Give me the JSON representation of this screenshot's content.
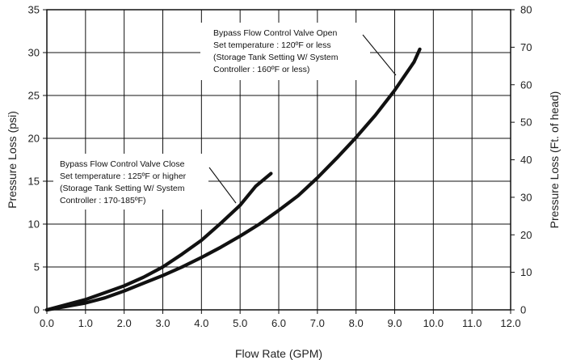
{
  "chart_data": {
    "type": "line",
    "xlabel": "Flow Rate (GPM)",
    "ylabel": "Pressure Loss (psi)",
    "y2label": "Pressure Loss (Ft. of head)",
    "xlim": [
      0,
      12
    ],
    "ylim": [
      0,
      35
    ],
    "y2lim": [
      0,
      80
    ],
    "grid": true,
    "legend": "none",
    "x_ticks": [
      "0.0",
      "1.0",
      "2.0",
      "3.0",
      "4.0",
      "5.0",
      "6.0",
      "7.0",
      "8.0",
      "9.0",
      "10.0",
      "11.0",
      "12.0"
    ],
    "y_ticks": [
      "0",
      "5",
      "10",
      "15",
      "20",
      "25",
      "30",
      "35"
    ],
    "y2_ticks": [
      "0",
      "10",
      "20",
      "30",
      "40",
      "50",
      "60",
      "70",
      "80"
    ],
    "series": [
      {
        "key": "open",
        "x": [
          0,
          0.5,
          1.0,
          1.5,
          2.0,
          2.5,
          3.0,
          3.5,
          4.0,
          4.5,
          5.0,
          5.5,
          6.0,
          6.5,
          7.0,
          7.5,
          8.0,
          8.5,
          9.0,
          9.5,
          9.65
        ],
        "y": [
          0,
          0.4,
          0.8,
          1.4,
          2.2,
          3.1,
          4.0,
          5.0,
          6.1,
          7.3,
          8.6,
          10.0,
          11.6,
          13.3,
          15.4,
          17.7,
          20.1,
          22.7,
          25.6,
          28.9,
          30.4
        ]
      },
      {
        "key": "close",
        "x": [
          0,
          0.5,
          1.0,
          1.5,
          2.0,
          2.5,
          3.0,
          3.5,
          4.0,
          4.5,
          5.0,
          5.4,
          5.8
        ],
        "y": [
          0,
          0.6,
          1.2,
          2.0,
          2.8,
          3.8,
          5.0,
          6.5,
          8.1,
          10.1,
          12.2,
          14.4,
          15.9
        ]
      }
    ],
    "annotations": [
      {
        "key": "open",
        "lines": [
          "Bypass Flow Control Valve Open",
          "Set temperature : 120ºF or less",
          "(Storage Tank Setting W/ System",
          "Controller : 160ºF or less)"
        ]
      },
      {
        "key": "close",
        "lines": [
          "Bypass Flow Control Valve Close",
          "Set temperature : 125ºF or higher",
          "(Storage Tank Setting W/ System",
          "Controller : 170-185ºF)"
        ]
      }
    ]
  }
}
